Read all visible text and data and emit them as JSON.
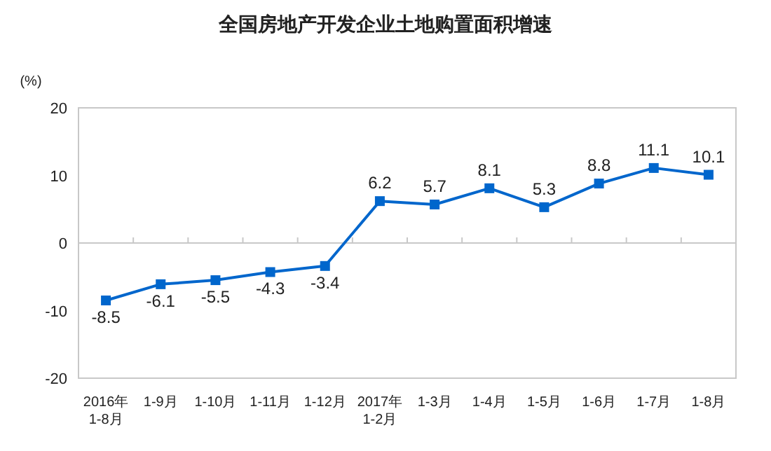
{
  "chart_data": {
    "type": "line",
    "title": "全国房地产开发企业土地购置面积增速",
    "ylabel": "(%)",
    "categories": [
      "2016年\n1-8月",
      "1-9月",
      "1-10月",
      "1-11月",
      "1-12月",
      "2017年\n1-2月",
      "1-3月",
      "1-4月",
      "1-5月",
      "1-6月",
      "1-7月",
      "1-8月"
    ],
    "series": [
      {
        "color": "#0066cc",
        "values": [
          -8.5,
          -6.1,
          -5.5,
          -4.3,
          -3.4,
          6.2,
          5.7,
          8.1,
          5.3,
          8.8,
          11.1,
          10.1
        ]
      }
    ],
    "ylim": [
      -20,
      20
    ],
    "yticks": [
      -20,
      -10,
      0,
      10,
      20
    ],
    "marker": "square",
    "line_style": "solid",
    "data_labels": true
  }
}
